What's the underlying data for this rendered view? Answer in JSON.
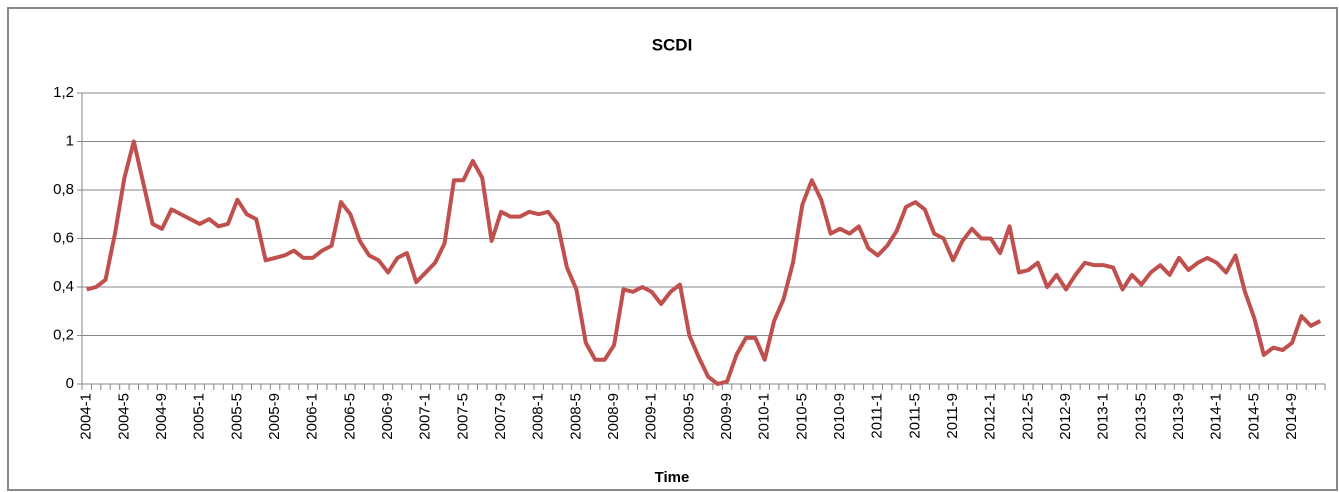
{
  "chart_data": {
    "type": "line",
    "title": "SCDI",
    "x_label": "Time",
    "categories": [
      "2004-1",
      null,
      null,
      null,
      "2004-5",
      null,
      null,
      null,
      "2004-9",
      null,
      null,
      null,
      "2005-1",
      null,
      null,
      null,
      "2005-5",
      null,
      null,
      null,
      "2005-9",
      null,
      null,
      null,
      "2006-1",
      null,
      null,
      null,
      "2006-5",
      null,
      null,
      null,
      "2006-9",
      null,
      null,
      null,
      "2007-1",
      null,
      null,
      null,
      "2007-5",
      null,
      null,
      null,
      "2007-9",
      null,
      null,
      null,
      "2008-1",
      null,
      null,
      null,
      "2008-5",
      null,
      null,
      null,
      "2008-9",
      null,
      null,
      null,
      "2009-1",
      null,
      null,
      null,
      "2009-5",
      null,
      null,
      null,
      "2009-9",
      null,
      null,
      null,
      "2010-1",
      null,
      null,
      null,
      "2010-5",
      null,
      null,
      null,
      "2010-9",
      null,
      null,
      null,
      "2011-1",
      null,
      null,
      null,
      "2011-5",
      null,
      null,
      null,
      "2011-9",
      null,
      null,
      null,
      "2012-1",
      null,
      null,
      null,
      "2012-5",
      null,
      null,
      null,
      "2012-9",
      null,
      null,
      null,
      "2013-1",
      null,
      null,
      null,
      "2013-5",
      null,
      null,
      null,
      "2013-9",
      null,
      null,
      null,
      "2014-1",
      null,
      null,
      null,
      "2014-5",
      null,
      null,
      null,
      "2014-9",
      null,
      null,
      null
    ],
    "series": [
      {
        "name": "SCDI",
        "color": "#c0504d",
        "values": [
          0.39,
          0.4,
          0.43,
          0.62,
          0.85,
          1.0,
          0.83,
          0.66,
          0.64,
          0.72,
          0.7,
          0.68,
          0.66,
          0.68,
          0.65,
          0.66,
          0.76,
          0.7,
          0.68,
          0.51,
          0.52,
          0.53,
          0.55,
          0.52,
          0.52,
          0.55,
          0.57,
          0.75,
          0.7,
          0.59,
          0.53,
          0.51,
          0.46,
          0.52,
          0.54,
          0.42,
          0.46,
          0.5,
          0.58,
          0.84,
          0.84,
          0.92,
          0.85,
          0.59,
          0.71,
          0.69,
          0.69,
          0.71,
          0.7,
          0.71,
          0.66,
          0.48,
          0.39,
          0.17,
          0.1,
          0.1,
          0.16,
          0.39,
          0.38,
          0.4,
          0.38,
          0.33,
          0.38,
          0.41,
          0.2,
          0.11,
          0.03,
          0.0,
          0.01,
          0.12,
          0.19,
          0.19,
          0.1,
          0.26,
          0.35,
          0.5,
          0.74,
          0.84,
          0.76,
          0.62,
          0.64,
          0.62,
          0.65,
          0.56,
          0.53,
          0.57,
          0.63,
          0.73,
          0.75,
          0.72,
          0.62,
          0.6,
          0.51,
          0.59,
          0.64,
          0.6,
          0.6,
          0.54,
          0.65,
          0.46,
          0.47,
          0.5,
          0.4,
          0.45,
          0.39,
          0.45,
          0.5,
          0.49,
          0.49,
          0.48,
          0.39,
          0.45,
          0.41,
          0.46,
          0.49,
          0.45,
          0.52,
          0.47,
          0.5,
          0.52,
          0.5,
          0.46,
          0.53,
          0.38,
          0.27,
          0.12,
          0.15,
          0.14,
          0.17,
          0.28,
          0.24,
          0.26
        ]
      }
    ],
    "ylim": [
      0,
      1.2
    ],
    "yticks": [
      0,
      {
        "value": 0.2,
        "label": "0,2"
      },
      {
        "value": 0.4,
        "label": "0,4"
      },
      {
        "value": 0.6,
        "label": "0,6"
      },
      {
        "value": 0.8,
        "label": "0,8"
      },
      1,
      {
        "value": 1.2,
        "label": "1,2"
      }
    ],
    "grid": true
  }
}
